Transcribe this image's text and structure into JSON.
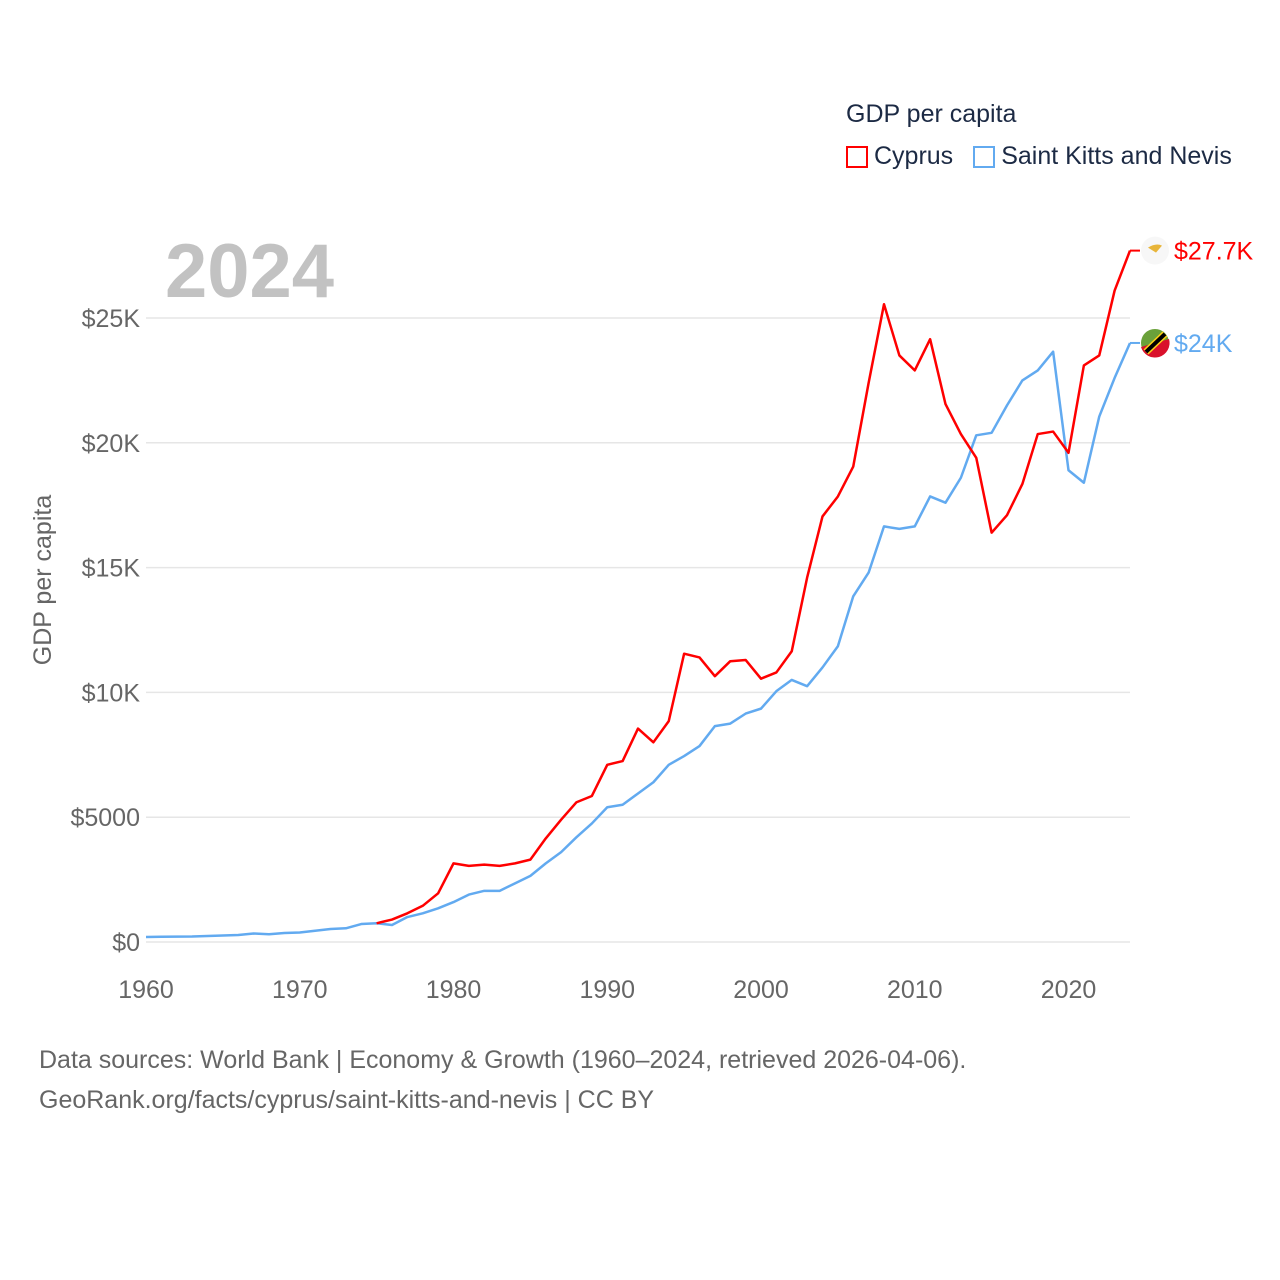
{
  "legend": {
    "title": "GDP per capita",
    "items": [
      "Cyprus",
      "Saint Kitts and Nevis"
    ]
  },
  "year_label": "2024",
  "footer": {
    "line1": "Data sources: World Bank | Economy & Growth (1960–2024, retrieved 2026-04-06).",
    "line2": "GeoRank.org/facts/cyprus/saint-kitts-and-nevis | CC BY"
  },
  "chart_data": {
    "type": "line",
    "title": "GDP per capita",
    "xlabel": "",
    "ylabel": "GDP per capita",
    "xlim": [
      1960,
      2024
    ],
    "ylim": [
      0,
      25000
    ],
    "grid": true,
    "legend_position": "top-right",
    "x_ticks": [
      1960,
      1970,
      1980,
      1990,
      2000,
      2010,
      2020
    ],
    "y_ticks": [
      0,
      5000,
      10000,
      15000,
      20000,
      25000
    ],
    "y_tick_labels": [
      "$0",
      "$5000",
      "$10K",
      "$15K",
      "$20K",
      "$25K"
    ],
    "series": [
      {
        "name": "Cyprus",
        "color": "#ff0000",
        "end_label": "$27.7K",
        "start_year": 1975,
        "values": [
          750,
          900,
          1150,
          1450,
          1950,
          3150,
          3050,
          3100,
          3050,
          3150,
          3300,
          4150,
          4900,
          5600,
          5850,
          7100,
          7250,
          8550,
          8000,
          8850,
          11550,
          11400,
          10650,
          11250,
          11300,
          10550,
          10800,
          11650,
          14600,
          17050,
          17850,
          19050,
          22400,
          25550,
          23500,
          22900,
          24150,
          21550,
          20350,
          19400,
          16400,
          17100,
          18350,
          20350,
          20450,
          19600,
          23100,
          23500,
          26100,
          27700
        ]
      },
      {
        "name": "Saint Kitts and Nevis",
        "color": "#62aaf0",
        "end_label": "$24K",
        "start_year": 1960,
        "values": [
          200,
          210,
          215,
          220,
          240,
          260,
          280,
          340,
          310,
          360,
          380,
          450,
          520,
          550,
          720,
          750,
          680,
          1000,
          1150,
          1350,
          1600,
          1900,
          2050,
          2050,
          2350,
          2650,
          3150,
          3600,
          4200,
          4750,
          5400,
          5500,
          5950,
          6400,
          7100,
          7450,
          7850,
          8650,
          8750,
          9150,
          9350,
          10050,
          10500,
          10250,
          11000,
          11850,
          13850,
          14800,
          16650,
          16550,
          16650,
          17850,
          17600,
          18600,
          20300,
          20400,
          21500,
          22500,
          22900,
          23650,
          18900,
          18400,
          21050,
          22600,
          24000
        ]
      }
    ]
  }
}
